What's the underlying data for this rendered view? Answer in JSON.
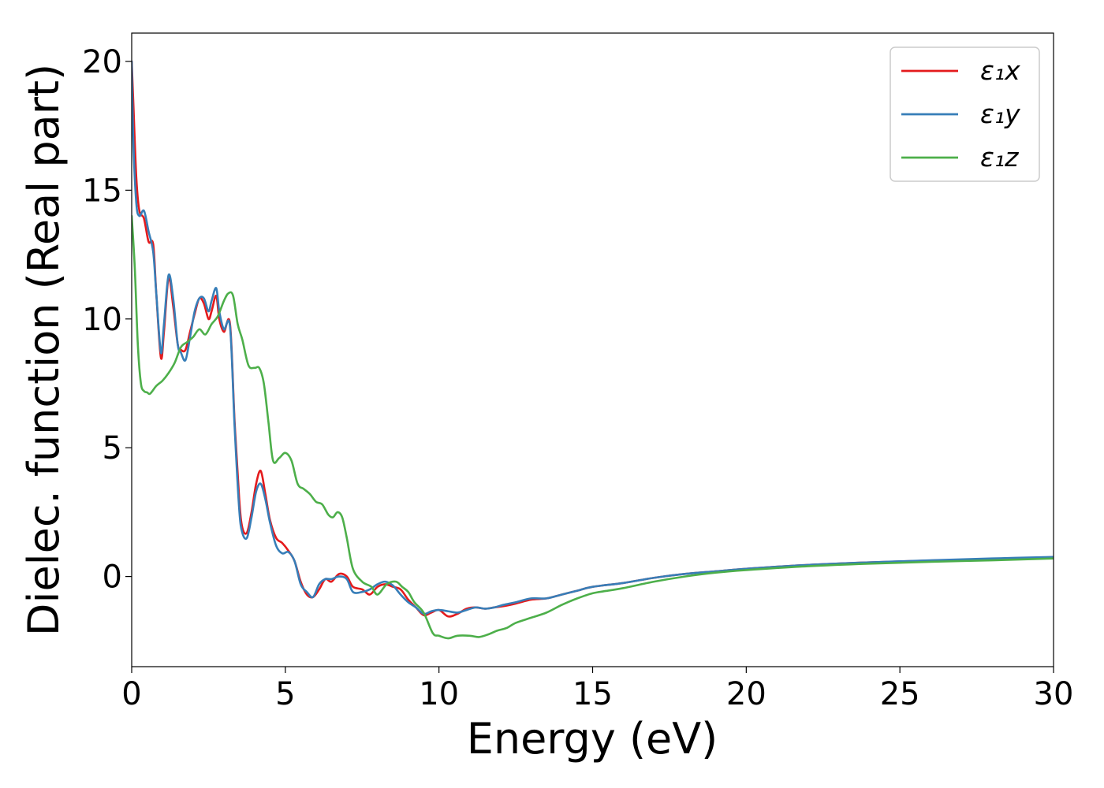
{
  "chart_data": {
    "type": "line",
    "title": "",
    "xlabel": "Energy (eV)",
    "ylabel": "Dielec. function (Real part)",
    "xlim": [
      0,
      30
    ],
    "ylim": [
      -3.5,
      21.1
    ],
    "xticks": [
      0,
      5,
      10,
      15,
      20,
      25,
      30
    ],
    "yticks": [
      0,
      5,
      10,
      15,
      20
    ],
    "grid": false,
    "legend_position": "top-right",
    "legend_entries": [
      "ε₁x",
      "ε₁y",
      "ε₁z"
    ],
    "series": [
      {
        "name": "ε₁x",
        "color": "#e41a1c",
        "x": [
          0,
          0.05,
          0.15,
          0.25,
          0.4,
          0.55,
          0.7,
          0.8,
          0.95,
          1.05,
          1.2,
          1.35,
          1.5,
          1.6,
          1.75,
          1.9,
          2.05,
          2.2,
          2.35,
          2.5,
          2.6,
          2.75,
          2.85,
          3.0,
          3.2,
          3.35,
          3.5,
          3.6,
          3.75,
          3.9,
          4.05,
          4.2,
          4.35,
          4.5,
          4.7,
          4.9,
          5.1,
          5.3,
          5.5,
          5.7,
          5.9,
          6.1,
          6.3,
          6.5,
          6.75,
          7.0,
          7.2,
          7.5,
          7.75,
          8.0,
          8.25,
          8.5,
          8.75,
          9.0,
          9.25,
          9.5,
          9.75,
          10.0,
          10.3,
          10.6,
          10.9,
          11.2,
          11.5,
          11.8,
          12.1,
          12.5,
          13.0,
          13.5,
          14.0,
          14.5,
          15.0,
          16.0,
          17.0,
          18.0,
          19.0,
          20.0,
          22.0,
          24.0,
          26.0,
          28.0,
          30.0
        ],
        "y": [
          20.0,
          18.5,
          15.5,
          14.2,
          13.9,
          13.0,
          12.9,
          11.0,
          8.5,
          9.5,
          11.6,
          10.5,
          9.0,
          8.8,
          8.8,
          9.5,
          10.2,
          10.8,
          10.6,
          10.0,
          10.3,
          10.9,
          10.0,
          9.5,
          9.8,
          6.0,
          3.0,
          1.9,
          1.7,
          2.5,
          3.6,
          4.1,
          3.2,
          2.2,
          1.5,
          1.3,
          1.0,
          0.6,
          -0.2,
          -0.7,
          -0.8,
          -0.5,
          -0.1,
          -0.2,
          0.1,
          0.0,
          -0.4,
          -0.5,
          -0.7,
          -0.4,
          -0.3,
          -0.4,
          -0.5,
          -0.9,
          -1.2,
          -1.5,
          -1.4,
          -1.3,
          -1.55,
          -1.45,
          -1.25,
          -1.2,
          -1.25,
          -1.2,
          -1.15,
          -1.05,
          -0.9,
          -0.85,
          -0.7,
          -0.55,
          -0.4,
          -0.25,
          -0.05,
          0.1,
          0.2,
          0.3,
          0.45,
          0.55,
          0.62,
          0.68,
          0.75
        ]
      },
      {
        "name": "ε₁y",
        "color": "#377eb8",
        "x": [
          0,
          0.05,
          0.15,
          0.25,
          0.4,
          0.55,
          0.7,
          0.8,
          0.95,
          1.05,
          1.2,
          1.35,
          1.5,
          1.6,
          1.75,
          1.9,
          2.05,
          2.2,
          2.35,
          2.5,
          2.6,
          2.75,
          2.85,
          3.0,
          3.2,
          3.35,
          3.5,
          3.6,
          3.75,
          3.9,
          4.05,
          4.2,
          4.35,
          4.5,
          4.7,
          4.9,
          5.1,
          5.3,
          5.5,
          5.7,
          5.9,
          6.1,
          6.3,
          6.5,
          6.75,
          7.0,
          7.2,
          7.5,
          7.75,
          8.0,
          8.25,
          8.5,
          8.75,
          9.0,
          9.25,
          9.5,
          9.75,
          10.0,
          10.3,
          10.6,
          10.9,
          11.2,
          11.5,
          11.8,
          12.1,
          12.5,
          13.0,
          13.5,
          14.0,
          14.5,
          15.0,
          16.0,
          17.0,
          18.0,
          19.0,
          20.0,
          22.0,
          24.0,
          26.0,
          28.0,
          30.0
        ],
        "y": [
          20.0,
          17.0,
          14.5,
          14.0,
          14.2,
          13.4,
          12.6,
          11.0,
          8.7,
          9.8,
          11.7,
          10.8,
          9.0,
          8.7,
          8.4,
          9.3,
          10.3,
          10.8,
          10.8,
          10.3,
          10.7,
          11.2,
          10.3,
          9.6,
          9.7,
          5.8,
          2.6,
          1.7,
          1.5,
          2.3,
          3.3,
          3.6,
          3.0,
          2.1,
          1.2,
          0.9,
          0.95,
          0.6,
          -0.3,
          -0.6,
          -0.8,
          -0.3,
          -0.1,
          -0.1,
          0.0,
          -0.1,
          -0.6,
          -0.6,
          -0.5,
          -0.3,
          -0.2,
          -0.35,
          -0.7,
          -1.0,
          -1.2,
          -1.45,
          -1.35,
          -1.3,
          -1.35,
          -1.4,
          -1.3,
          -1.2,
          -1.25,
          -1.2,
          -1.1,
          -1.0,
          -0.85,
          -0.85,
          -0.7,
          -0.55,
          -0.4,
          -0.25,
          -0.05,
          0.1,
          0.2,
          0.3,
          0.45,
          0.55,
          0.63,
          0.7,
          0.76
        ]
      },
      {
        "name": "ε₁z",
        "color": "#4daf4a",
        "x": [
          0,
          0.1,
          0.2,
          0.3,
          0.4,
          0.5,
          0.6,
          0.8,
          1.0,
          1.2,
          1.4,
          1.6,
          1.8,
          2.0,
          2.2,
          2.4,
          2.6,
          2.8,
          3.0,
          3.15,
          3.3,
          3.45,
          3.6,
          3.8,
          4.0,
          4.15,
          4.3,
          4.45,
          4.6,
          4.8,
          5.0,
          5.2,
          5.4,
          5.6,
          5.8,
          6.0,
          6.2,
          6.4,
          6.55,
          6.7,
          6.85,
          7.0,
          7.2,
          7.5,
          7.8,
          8.0,
          8.3,
          8.6,
          8.8,
          9.0,
          9.2,
          9.5,
          9.8,
          10.0,
          10.3,
          10.6,
          11.0,
          11.3,
          11.6,
          11.9,
          12.2,
          12.5,
          13.0,
          13.5,
          14.0,
          14.5,
          15.0,
          15.5,
          16.0,
          17.0,
          18.0,
          19.0,
          20.0,
          22.0,
          24.0,
          26.0,
          28.0,
          30.0
        ],
        "y": [
          14.0,
          12.0,
          9.0,
          7.5,
          7.2,
          7.15,
          7.1,
          7.4,
          7.6,
          7.9,
          8.3,
          8.9,
          9.1,
          9.3,
          9.6,
          9.4,
          9.8,
          10.1,
          10.7,
          11.0,
          10.9,
          9.8,
          9.2,
          8.2,
          8.1,
          8.1,
          7.5,
          6.0,
          4.5,
          4.6,
          4.8,
          4.5,
          3.6,
          3.4,
          3.2,
          2.9,
          2.8,
          2.4,
          2.3,
          2.5,
          2.3,
          1.5,
          0.3,
          -0.2,
          -0.4,
          -0.7,
          -0.3,
          -0.2,
          -0.4,
          -0.6,
          -1.0,
          -1.4,
          -2.2,
          -2.3,
          -2.4,
          -2.3,
          -2.3,
          -2.35,
          -2.25,
          -2.1,
          -2.0,
          -1.8,
          -1.6,
          -1.4,
          -1.1,
          -0.85,
          -0.65,
          -0.55,
          -0.45,
          -0.2,
          0.0,
          0.15,
          0.25,
          0.4,
          0.5,
          0.57,
          0.63,
          0.7
        ]
      }
    ]
  }
}
